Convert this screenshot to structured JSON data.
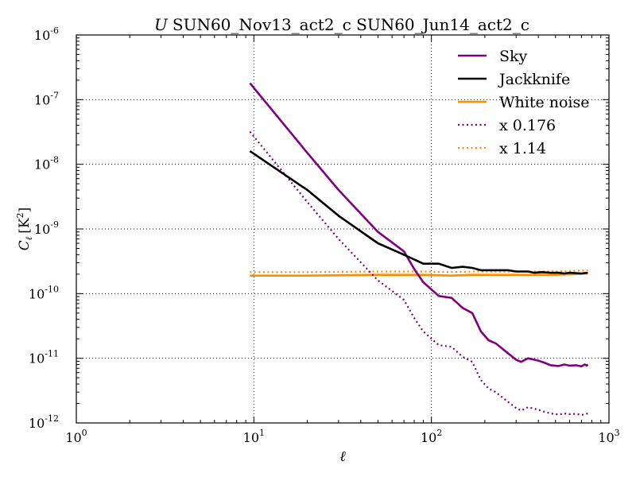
{
  "chart_data": {
    "type": "line",
    "title_italic": "U",
    "title_rest": "SUN60_Nov13_act2_c SUN60_Jun14_act2_c",
    "xlabel": "ℓ",
    "ylabel_main": "C",
    "ylabel_sub": "ℓ",
    "ylabel_unit": "[K",
    "ylabel_unit_sup": "2",
    "ylabel_unit_close": "]",
    "xscale": "log",
    "yscale": "log",
    "xlim": [
      1,
      1000
    ],
    "ylim": [
      1e-12,
      1e-06
    ],
    "grid": true,
    "legend_position": "top-right",
    "x_ticks": [
      {
        "value": 1,
        "base": "10",
        "exp": "0"
      },
      {
        "value": 10,
        "base": "10",
        "exp": "1"
      },
      {
        "value": 100,
        "base": "10",
        "exp": "2"
      },
      {
        "value": 1000,
        "base": "10",
        "exp": "3"
      }
    ],
    "y_ticks": [
      {
        "value": 1e-12,
        "base": "10",
        "exp": "-12"
      },
      {
        "value": 1e-11,
        "base": "10",
        "exp": "-11"
      },
      {
        "value": 1e-10,
        "base": "10",
        "exp": "-10"
      },
      {
        "value": 1e-09,
        "base": "10",
        "exp": "-9"
      },
      {
        "value": 1e-08,
        "base": "10",
        "exp": "-8"
      },
      {
        "value": 1e-07,
        "base": "10",
        "exp": "-7"
      },
      {
        "value": 1e-06,
        "base": "10",
        "exp": "-6"
      }
    ],
    "series": [
      {
        "name": "Sky",
        "color": "#800080",
        "style": "solid",
        "width": 2.6,
        "points": [
          [
            9.5,
            1.8e-07
          ],
          [
            20,
            1.5e-08
          ],
          [
            30,
            4e-09
          ],
          [
            50,
            9e-10
          ],
          [
            70,
            4.5e-10
          ],
          [
            80,
            2.4e-10
          ],
          [
            90,
            1.5e-10
          ],
          [
            110,
            9.2e-11
          ],
          [
            130,
            8.6e-11
          ],
          [
            150,
            6e-11
          ],
          [
            170,
            5e-11
          ],
          [
            190,
            2.6e-11
          ],
          [
            210,
            1.9e-11
          ],
          [
            230,
            1.7e-11
          ],
          [
            260,
            1.3e-11
          ],
          [
            300,
            9.5e-12
          ],
          [
            320,
            8.8e-12
          ],
          [
            350,
            1e-11
          ],
          [
            400,
            9.2e-12
          ],
          [
            430,
            8.6e-12
          ],
          [
            470,
            7.8e-12
          ],
          [
            520,
            7.6e-12
          ],
          [
            560,
            8e-12
          ],
          [
            600,
            7.7e-12
          ],
          [
            650,
            7.8e-12
          ],
          [
            700,
            7.5e-12
          ],
          [
            730,
            8e-12
          ],
          [
            750,
            7.7e-12
          ],
          [
            760,
            8e-12
          ]
        ]
      },
      {
        "name": "Jackknife",
        "color": "#000000",
        "style": "solid",
        "width": 2.6,
        "points": [
          [
            9.5,
            1.6e-08
          ],
          [
            20,
            4e-09
          ],
          [
            30,
            1.6e-09
          ],
          [
            50,
            6e-10
          ],
          [
            70,
            4e-10
          ],
          [
            90,
            2.9e-10
          ],
          [
            110,
            2.9e-10
          ],
          [
            130,
            2.5e-10
          ],
          [
            150,
            2.6e-10
          ],
          [
            170,
            2.5e-10
          ],
          [
            190,
            2.3e-10
          ],
          [
            230,
            2.3e-10
          ],
          [
            270,
            2.3e-10
          ],
          [
            300,
            2.2e-10
          ],
          [
            350,
            2.2e-10
          ],
          [
            380,
            2.1e-10
          ],
          [
            420,
            2.15e-10
          ],
          [
            470,
            2.1e-10
          ],
          [
            520,
            2.1e-10
          ],
          [
            560,
            2.05e-10
          ],
          [
            600,
            2.1e-10
          ],
          [
            700,
            2.05e-10
          ],
          [
            760,
            2.1e-10
          ]
        ]
      },
      {
        "name": "White noise",
        "color": "#ff8c00",
        "style": "solid",
        "width": 2.6,
        "points": [
          [
            9.5,
            1.9e-10
          ],
          [
            20,
            1.9e-10
          ],
          [
            50,
            1.95e-10
          ],
          [
            90,
            1.95e-10
          ],
          [
            130,
            1.9e-10
          ],
          [
            170,
            1.95e-10
          ],
          [
            250,
            1.95e-10
          ],
          [
            350,
            1.95e-10
          ],
          [
            500,
            1.95e-10
          ],
          [
            650,
            2e-10
          ],
          [
            760,
            2.05e-10
          ]
        ]
      },
      {
        "name": "x 0.176",
        "color": "#800080",
        "style": "dotted",
        "width": 2.2,
        "points": [
          [
            9.5,
            3.2e-08
          ],
          [
            20,
            2.6e-09
          ],
          [
            30,
            7e-10
          ],
          [
            50,
            1.6e-10
          ],
          [
            70,
            8e-11
          ],
          [
            80,
            4.2e-11
          ],
          [
            90,
            2.6e-11
          ],
          [
            110,
            1.6e-11
          ],
          [
            130,
            1.5e-11
          ],
          [
            150,
            1.05e-11
          ],
          [
            170,
            8.8e-12
          ],
          [
            190,
            4.6e-12
          ],
          [
            210,
            3.4e-12
          ],
          [
            230,
            3e-12
          ],
          [
            260,
            2.3e-12
          ],
          [
            300,
            1.7e-12
          ],
          [
            320,
            1.55e-12
          ],
          [
            350,
            1.75e-12
          ],
          [
            400,
            1.6e-12
          ],
          [
            430,
            1.5e-12
          ],
          [
            470,
            1.4e-12
          ],
          [
            520,
            1.35e-12
          ],
          [
            560,
            1.4e-12
          ],
          [
            600,
            1.37e-12
          ],
          [
            650,
            1.38e-12
          ],
          [
            700,
            1.33e-12
          ],
          [
            760,
            1.4e-12
          ]
        ]
      },
      {
        "name": "x 1.14",
        "color": "#ff8c00",
        "style": "dotted",
        "width": 2.2,
        "points": [
          [
            9.5,
            2.15e-10
          ],
          [
            20,
            2.15e-10
          ],
          [
            50,
            2.2e-10
          ],
          [
            90,
            2.2e-10
          ],
          [
            130,
            2.15e-10
          ],
          [
            170,
            2.2e-10
          ],
          [
            250,
            2.2e-10
          ],
          [
            350,
            2.2e-10
          ],
          [
            500,
            2.2e-10
          ],
          [
            650,
            2.25e-10
          ],
          [
            760,
            2.3e-10
          ]
        ]
      }
    ]
  }
}
